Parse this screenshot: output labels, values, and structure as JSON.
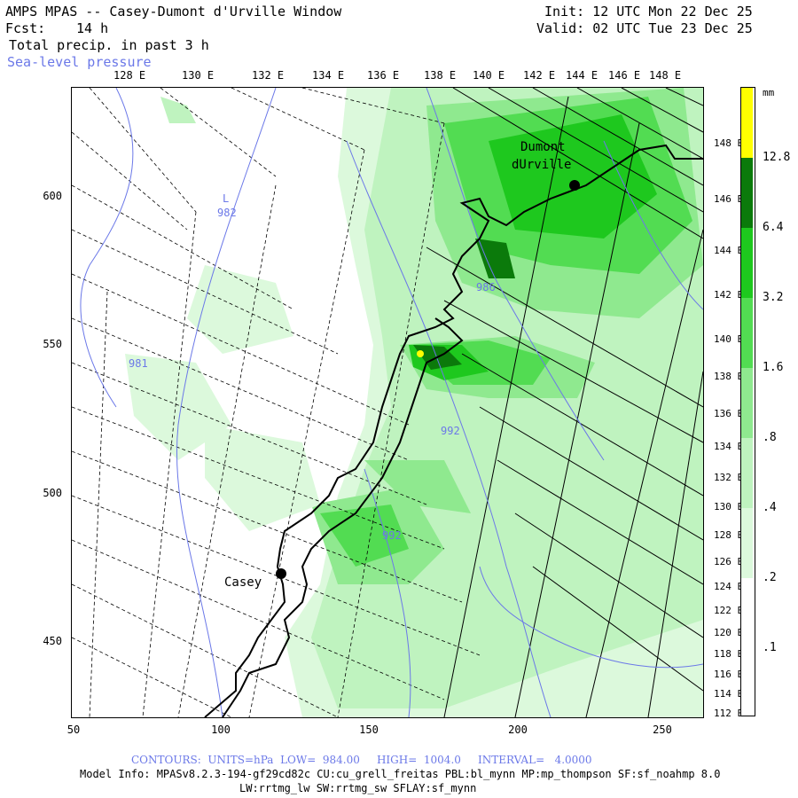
{
  "header": {
    "title": "AMPS MPAS -- Casey-Dumont d'Urville Window",
    "forecast_label": "Fcst:",
    "forecast_value": "14 h",
    "field": "Total precip. in past 3 h",
    "overlay": "Sea-level pressure",
    "init": "Init: 12 UTC Mon 22 Dec 25",
    "valid": "Valid: 02 UTC Tue 23 Dec 25"
  },
  "axes": {
    "y_ticks": [
      "600",
      "550",
      "500",
      "450"
    ],
    "x_ticks": [
      "50",
      "100",
      "150",
      "200",
      "250"
    ],
    "top_longitudes": [
      "128 E",
      "130 E",
      "132 E",
      "134 E",
      "136 E",
      "138 E",
      "140 E",
      "142 E",
      "144 E",
      "146 E",
      "148 E"
    ],
    "right_latitudes": [
      "148 E",
      "146 E",
      "144 E",
      "142 E",
      "140 E",
      "138 E",
      "136 E",
      "134 E",
      "132 E",
      "130 E",
      "128 E",
      "126 E",
      "124 E",
      "122 E",
      "120 E",
      "118 E",
      "116 E",
      "114 E",
      "112 E"
    ]
  },
  "colorbar": {
    "unit": "mm",
    "labels": [
      "12.8",
      "6.4",
      "3.2",
      "1.6",
      ".8",
      ".4",
      ".2",
      ".1"
    ],
    "colors": [
      "#ffff00",
      "#0b7a0b",
      "#1ec81e",
      "#52dc52",
      "#8fe98f",
      "#bff3bf",
      "#dcf9dc",
      "#ffffff"
    ]
  },
  "stations": {
    "casey": "Casey",
    "dumont_line1": "Dumont",
    "dumont_line2": "dUrville"
  },
  "contours": {
    "labels": [
      "982",
      "981",
      "986",
      "992",
      "992"
    ],
    "low_marker": "L"
  },
  "footer": {
    "contour_line": "CONTOURS:  UNITS=hPa  LOW=  984.00     HIGH=  1004.0     INTERVAL=   4.0000",
    "model_info": "Model Info: MPASv8.2.3-194-gf29cd82c CU:cu_grell_freitas PBL:bl_mynn MP:mp_thompson SF:sf_noahmp 8.0",
    "model_info2": "LW:rrtmg_lw SW:rrtmg_sw SFLAY:sf_mynn"
  }
}
